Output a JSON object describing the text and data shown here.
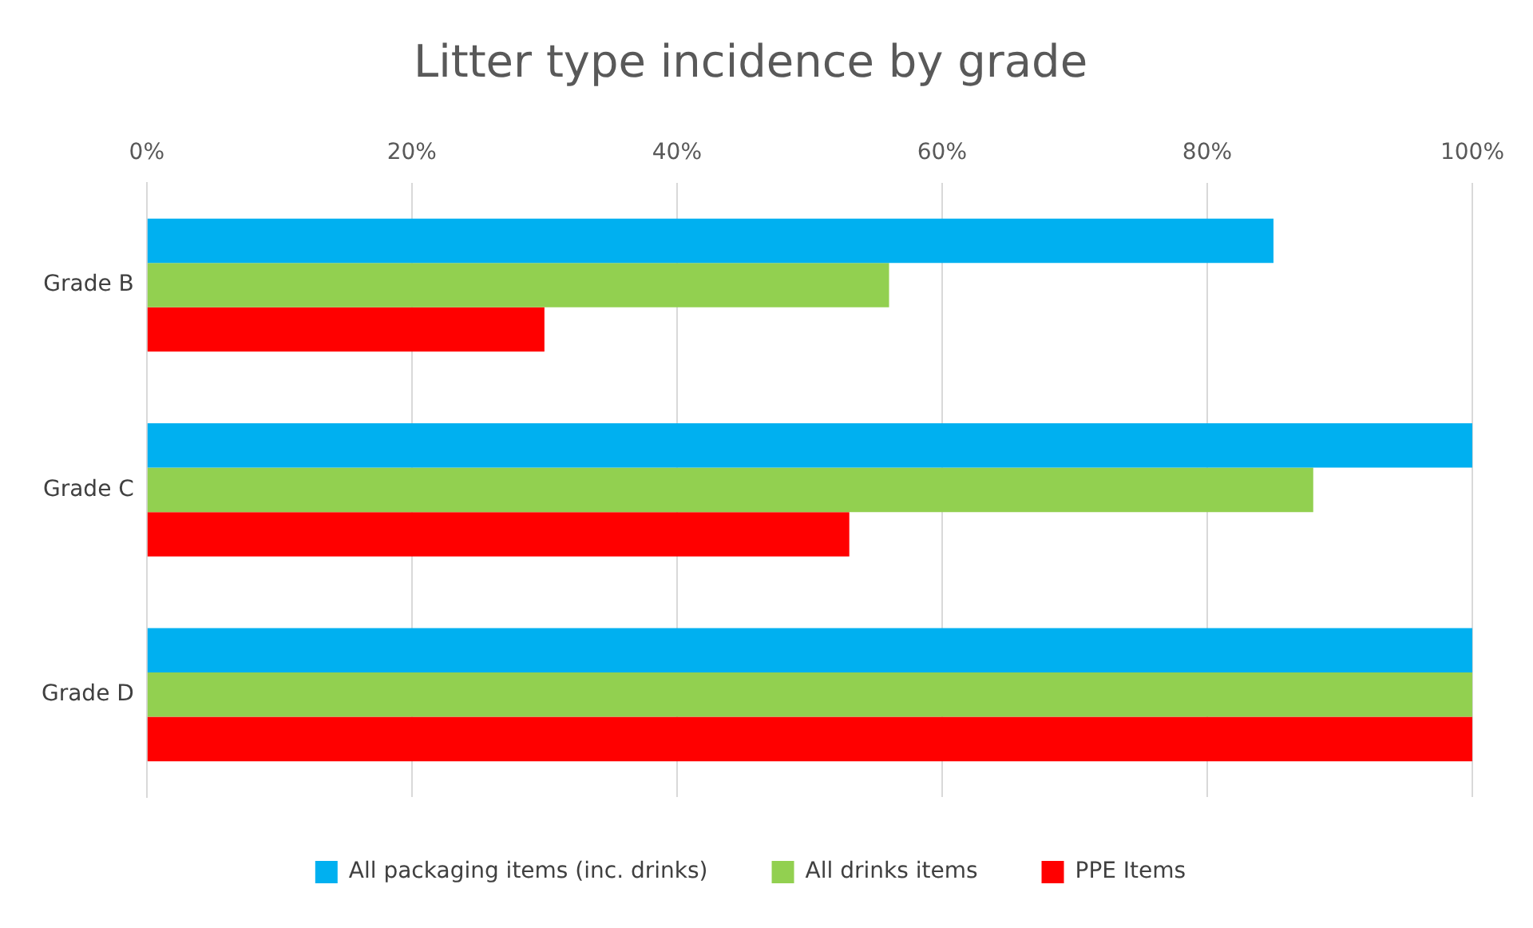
{
  "chart_data": {
    "type": "bar",
    "orientation": "horizontal",
    "title": "Litter type incidence by grade",
    "categories": [
      "Grade B",
      "Grade C",
      "Grade D"
    ],
    "series": [
      {
        "name": "All packaging items (inc. drinks)",
        "color": "#00b0f0",
        "values": [
          85,
          100,
          100
        ]
      },
      {
        "name": "All drinks items",
        "color": "#92d050",
        "values": [
          56,
          88,
          100
        ]
      },
      {
        "name": "PPE Items",
        "color": "#ff0000",
        "values": [
          30,
          53,
          100
        ]
      }
    ],
    "xlim": [
      0,
      100
    ],
    "xticks": [
      {
        "value": 0,
        "label": "0%"
      },
      {
        "value": 20,
        "label": "20%"
      },
      {
        "value": 40,
        "label": "40%"
      },
      {
        "value": 60,
        "label": "60%"
      },
      {
        "value": 80,
        "label": "80%"
      },
      {
        "value": 100,
        "label": "100%"
      }
    ],
    "grid": "x",
    "legend": "bottom"
  }
}
